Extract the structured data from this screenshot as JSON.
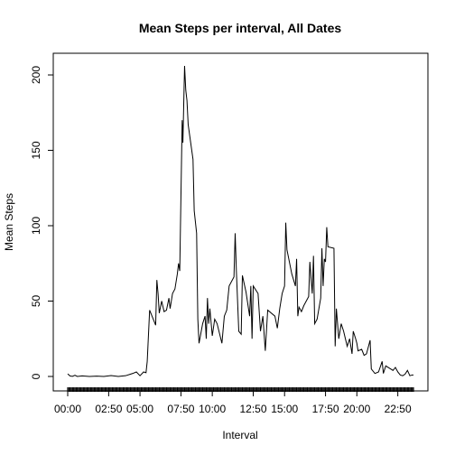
{
  "chart_data": {
    "type": "line",
    "title": "Mean Steps per interval, All Dates",
    "xlabel": "Interval",
    "ylabel": "Mean Steps",
    "x_tick_labels": [
      "00:00",
      "02:50",
      "05:00",
      "07:50",
      "10:00",
      "12:50",
      "15:00",
      "17:50",
      "20:00",
      "22:50"
    ],
    "y_tick_labels": [
      "0",
      "50",
      "100",
      "150",
      "200"
    ],
    "y_ticks": [
      0,
      50,
      100,
      150,
      200
    ],
    "ylim": [
      0,
      206
    ],
    "xlim": [
      "00:00",
      "23:55"
    ],
    "interval_minutes": 5,
    "grid": false,
    "series": [
      {
        "color": "#000000",
        "points": [
          [
            "00:00",
            1.7
          ],
          [
            "00:10",
            0.3
          ],
          [
            "00:20",
            0.1
          ],
          [
            "00:30",
            0.8
          ],
          [
            "00:40",
            0.0
          ],
          [
            "01:00",
            0.4
          ],
          [
            "01:30",
            0.0
          ],
          [
            "02:00",
            0.2
          ],
          [
            "02:30",
            0.0
          ],
          [
            "03:00",
            0.6
          ],
          [
            "03:30",
            0.0
          ],
          [
            "04:00",
            0.5
          ],
          [
            "04:20",
            1.5
          ],
          [
            "04:30",
            2.0
          ],
          [
            "04:45",
            3.0
          ],
          [
            "05:00",
            0.5
          ],
          [
            "05:15",
            3.0
          ],
          [
            "05:25",
            2.5
          ],
          [
            "05:30",
            10.0
          ],
          [
            "05:40",
            44.0
          ],
          [
            "05:50",
            40.0
          ],
          [
            "06:05",
            34.0
          ],
          [
            "06:10",
            64.0
          ],
          [
            "06:15",
            55.0
          ],
          [
            "06:20",
            42.0
          ],
          [
            "06:30",
            50.0
          ],
          [
            "06:40",
            43.0
          ],
          [
            "06:50",
            44.0
          ],
          [
            "07:00",
            52.0
          ],
          [
            "07:05",
            45.0
          ],
          [
            "07:15",
            55.0
          ],
          [
            "07:25",
            58.0
          ],
          [
            "07:35",
            68.0
          ],
          [
            "07:40",
            75.0
          ],
          [
            "07:45",
            70.0
          ],
          [
            "07:55",
            170.0
          ],
          [
            "07:58",
            155.0
          ],
          [
            "08:05",
            206.0
          ],
          [
            "08:10",
            190.0
          ],
          [
            "08:15",
            183.0
          ],
          [
            "08:20",
            167.0
          ],
          [
            "08:40",
            144.0
          ],
          [
            "08:45",
            110.0
          ],
          [
            "08:55",
            95.0
          ],
          [
            "09:00",
            38.0
          ],
          [
            "09:05",
            22.0
          ],
          [
            "09:20",
            35.0
          ],
          [
            "09:30",
            40.0
          ],
          [
            "09:35",
            25.0
          ],
          [
            "09:40",
            52.0
          ],
          [
            "09:45",
            35.0
          ],
          [
            "09:50",
            45.0
          ],
          [
            "10:00",
            27.0
          ],
          [
            "10:10",
            38.0
          ],
          [
            "10:20",
            35.0
          ],
          [
            "10:40",
            22.0
          ],
          [
            "10:50",
            40.0
          ],
          [
            "11:00",
            44.0
          ],
          [
            "11:10",
            60.0
          ],
          [
            "11:30",
            66.0
          ],
          [
            "11:35",
            95.0
          ],
          [
            "11:40",
            70.0
          ],
          [
            "11:50",
            30.0
          ],
          [
            "12:00",
            28.0
          ],
          [
            "12:05",
            67.0
          ],
          [
            "12:20",
            56.0
          ],
          [
            "12:35",
            40.0
          ],
          [
            "12:40",
            60.0
          ],
          [
            "12:45",
            25.0
          ],
          [
            "12:50",
            60.0
          ],
          [
            "13:10",
            55.0
          ],
          [
            "13:20",
            30.0
          ],
          [
            "13:30",
            40.0
          ],
          [
            "13:40",
            17.0
          ],
          [
            "13:50",
            44.0
          ],
          [
            "14:20",
            40.0
          ],
          [
            "14:30",
            32.0
          ],
          [
            "14:40",
            45.0
          ],
          [
            "14:50",
            55.0
          ],
          [
            "15:00",
            60.0
          ],
          [
            "15:05",
            102.0
          ],
          [
            "15:10",
            84.0
          ],
          [
            "15:30",
            68.0
          ],
          [
            "15:45",
            60.0
          ],
          [
            "15:50",
            78.0
          ],
          [
            "15:55",
            40.0
          ],
          [
            "16:00",
            46.0
          ],
          [
            "16:10",
            43.0
          ],
          [
            "16:20",
            47.0
          ],
          [
            "16:40",
            53.0
          ],
          [
            "16:45",
            76.0
          ],
          [
            "16:50",
            65.0
          ],
          [
            "16:55",
            55.0
          ],
          [
            "17:00",
            80.0
          ],
          [
            "17:05",
            35.0
          ],
          [
            "17:15",
            38.0
          ],
          [
            "17:30",
            52.0
          ],
          [
            "17:35",
            85.0
          ],
          [
            "17:40",
            60.0
          ],
          [
            "17:45",
            78.0
          ],
          [
            "17:50",
            76.0
          ],
          [
            "17:55",
            99.0
          ],
          [
            "18:00",
            86.0
          ],
          [
            "18:25",
            85.0
          ],
          [
            "18:30",
            20.0
          ],
          [
            "18:35",
            45.0
          ],
          [
            "18:45",
            25.0
          ],
          [
            "18:55",
            35.0
          ],
          [
            "19:05",
            30.0
          ],
          [
            "19:20",
            20.0
          ],
          [
            "19:30",
            25.0
          ],
          [
            "19:40",
            15.0
          ],
          [
            "19:45",
            30.0
          ],
          [
            "19:55",
            25.0
          ],
          [
            "20:00",
            22.0
          ],
          [
            "20:05",
            17.0
          ],
          [
            "20:20",
            18.0
          ],
          [
            "20:30",
            14.0
          ],
          [
            "20:40",
            15.0
          ],
          [
            "20:55",
            24.0
          ],
          [
            "21:00",
            5.0
          ],
          [
            "21:15",
            2.0
          ],
          [
            "21:30",
            3.0
          ],
          [
            "21:45",
            10.0
          ],
          [
            "21:50",
            2.0
          ],
          [
            "22:00",
            7.0
          ],
          [
            "22:30",
            4.0
          ],
          [
            "22:40",
            6.0
          ],
          [
            "22:50",
            3.0
          ],
          [
            "23:00",
            1.0
          ],
          [
            "23:10",
            0.5
          ],
          [
            "23:20",
            1.5
          ],
          [
            "23:30",
            4.0
          ],
          [
            "23:40",
            0.5
          ],
          [
            "23:50",
            1.0
          ],
          [
            "23:55",
            1.0
          ]
        ]
      }
    ]
  }
}
